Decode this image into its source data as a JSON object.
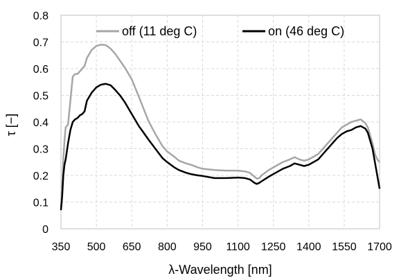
{
  "chart_data": {
    "type": "line",
    "title": "",
    "xlabel": "λ-Wavelength [nm]",
    "ylabel": "τ [−]",
    "xlim": [
      350,
      1700
    ],
    "ylim": [
      0,
      0.8
    ],
    "xticks": [
      350,
      500,
      650,
      800,
      950,
      1100,
      1250,
      1400,
      1550,
      1700
    ],
    "yticks": [
      0,
      0.1,
      0.2,
      0.3,
      0.4,
      0.5,
      0.6,
      0.7,
      0.8
    ],
    "xtick_labels": [
      "350",
      "500",
      "650",
      "800",
      "950",
      "1100",
      "1250",
      "1400",
      "1550",
      "1700"
    ],
    "ytick_labels": [
      "0",
      "0.1",
      "0.2",
      "0.3",
      "0.4",
      "0.5",
      "0.6",
      "0.7",
      "0.8"
    ],
    "grid": true,
    "legend_position": "top",
    "series": [
      {
        "name": "off (11 deg C)",
        "color": "#a6a6a6",
        "x": [
          350,
          355,
          360,
          365,
          370,
          380,
          390,
          400,
          410,
          420,
          430,
          440,
          450,
          460,
          480,
          500,
          520,
          540,
          560,
          580,
          600,
          620,
          650,
          680,
          700,
          720,
          750,
          780,
          800,
          830,
          850,
          880,
          900,
          930,
          950,
          1000,
          1050,
          1100,
          1130,
          1150,
          1170,
          1180,
          1190,
          1200,
          1230,
          1260,
          1290,
          1320,
          1340,
          1360,
          1380,
          1400,
          1420,
          1440,
          1460,
          1490,
          1520,
          1540,
          1560,
          1580,
          1600,
          1620,
          1640,
          1650,
          1660,
          1670,
          1680,
          1690,
          1700
        ],
        "y": [
          0.08,
          0.15,
          0.26,
          0.33,
          0.38,
          0.39,
          0.48,
          0.57,
          0.58,
          0.58,
          0.59,
          0.6,
          0.61,
          0.64,
          0.67,
          0.685,
          0.69,
          0.688,
          0.675,
          0.655,
          0.63,
          0.605,
          0.56,
          0.495,
          0.45,
          0.405,
          0.355,
          0.31,
          0.29,
          0.27,
          0.255,
          0.245,
          0.24,
          0.23,
          0.225,
          0.22,
          0.218,
          0.218,
          0.215,
          0.21,
          0.195,
          0.188,
          0.19,
          0.2,
          0.22,
          0.235,
          0.25,
          0.26,
          0.268,
          0.26,
          0.255,
          0.26,
          0.27,
          0.28,
          0.3,
          0.33,
          0.36,
          0.38,
          0.39,
          0.4,
          0.405,
          0.41,
          0.395,
          0.38,
          0.35,
          0.32,
          0.28,
          0.26,
          0.25
        ]
      },
      {
        "name": "on (46 deg C)",
        "color": "#000000",
        "x": [
          350,
          355,
          360,
          365,
          370,
          380,
          390,
          400,
          410,
          420,
          430,
          440,
          450,
          460,
          480,
          500,
          520,
          540,
          560,
          580,
          600,
          620,
          650,
          680,
          700,
          720,
          750,
          780,
          800,
          830,
          850,
          880,
          900,
          930,
          950,
          1000,
          1050,
          1100,
          1130,
          1150,
          1170,
          1180,
          1190,
          1200,
          1230,
          1260,
          1290,
          1320,
          1340,
          1360,
          1380,
          1400,
          1420,
          1440,
          1460,
          1490,
          1520,
          1540,
          1560,
          1580,
          1600,
          1620,
          1640,
          1650,
          1660,
          1670,
          1680,
          1690,
          1700
        ],
        "y": [
          0.07,
          0.12,
          0.2,
          0.24,
          0.26,
          0.32,
          0.37,
          0.4,
          0.41,
          0.415,
          0.425,
          0.43,
          0.44,
          0.48,
          0.51,
          0.53,
          0.54,
          0.543,
          0.538,
          0.52,
          0.5,
          0.475,
          0.43,
          0.385,
          0.36,
          0.335,
          0.3,
          0.265,
          0.25,
          0.23,
          0.22,
          0.21,
          0.205,
          0.2,
          0.198,
          0.19,
          0.19,
          0.192,
          0.19,
          0.185,
          0.172,
          0.168,
          0.172,
          0.178,
          0.195,
          0.21,
          0.225,
          0.235,
          0.245,
          0.24,
          0.235,
          0.24,
          0.25,
          0.26,
          0.28,
          0.31,
          0.34,
          0.355,
          0.365,
          0.37,
          0.38,
          0.385,
          0.375,
          0.36,
          0.33,
          0.3,
          0.25,
          0.2,
          0.15
        ]
      }
    ]
  }
}
